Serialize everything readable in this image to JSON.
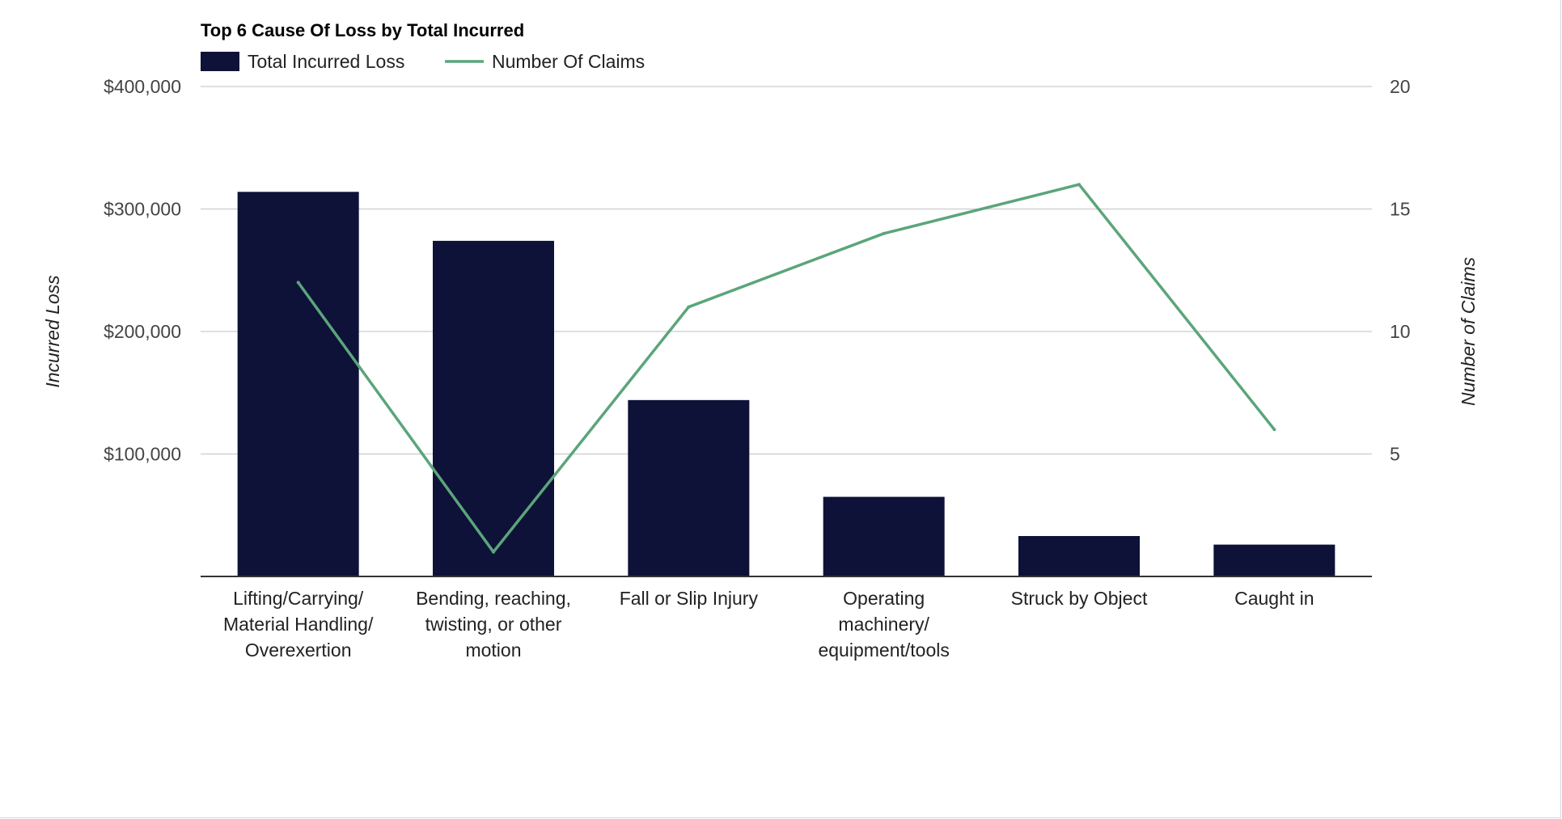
{
  "chart_data": {
    "type": "bar",
    "title": "Top 6 Cause Of Loss by Total Incurred",
    "categories": [
      [
        "Lifting/Carrying/",
        "Material Handling/",
        "Overexertion"
      ],
      [
        "Bending, reaching,",
        "twisting, or other",
        "motion"
      ],
      [
        "Fall or Slip Injury"
      ],
      [
        "Operating",
        "machinery/",
        "equipment/tools"
      ],
      [
        "Struck by Object"
      ],
      [
        "Caught in"
      ]
    ],
    "series": [
      {
        "name": "Total Incurred Loss",
        "kind": "bar",
        "axis": "left",
        "color": "#0e1238",
        "values": [
          314000,
          274000,
          144000,
          65000,
          33000,
          26000
        ]
      },
      {
        "name": "Number Of Claims",
        "kind": "line",
        "axis": "right",
        "color": "#5ba57b",
        "values": [
          12,
          1,
          11,
          14,
          16,
          6
        ]
      }
    ],
    "ylabel": "Incurred Loss",
    "y2label": "Number of Claims",
    "ylim": [
      0,
      400000
    ],
    "y2lim": [
      0,
      20
    ],
    "yticks": [
      "$100,000",
      "$200,000",
      "$300,000",
      "$400,000"
    ],
    "y2ticks": [
      "5",
      "10",
      "15",
      "20"
    ],
    "grid": true,
    "legend": "top-left"
  }
}
